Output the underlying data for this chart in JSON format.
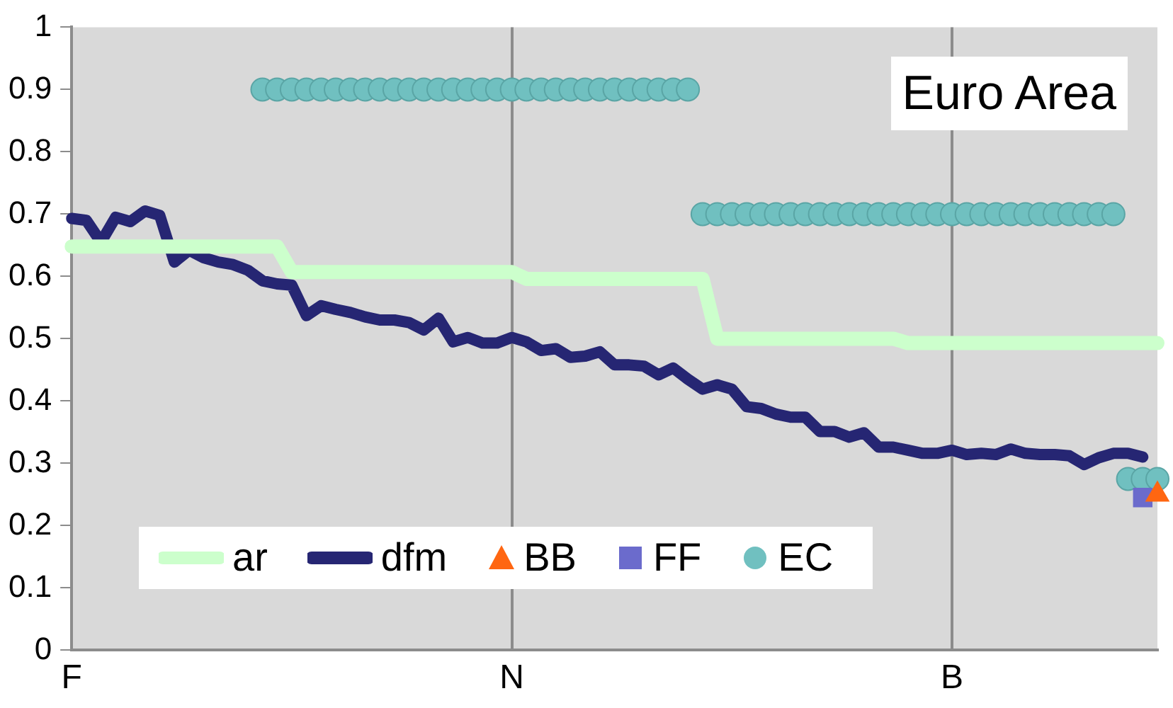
{
  "chart_data": {
    "type": "line",
    "title": "Euro Area",
    "categories": [
      "F",
      null,
      null,
      null,
      null,
      null,
      null,
      null,
      null,
      null,
      null,
      null,
      null,
      null,
      null,
      null,
      null,
      null,
      null,
      null,
      null,
      null,
      null,
      null,
      null,
      null,
      null,
      null,
      null,
      null,
      "N",
      null,
      null,
      null,
      null,
      null,
      null,
      null,
      null,
      null,
      null,
      null,
      null,
      null,
      null,
      null,
      null,
      null,
      null,
      null,
      null,
      null,
      null,
      null,
      null,
      null,
      null,
      null,
      null,
      null,
      "B",
      null,
      null,
      null,
      null,
      null,
      null,
      null,
      null,
      null,
      null,
      null,
      null,
      null,
      null
    ],
    "ylim": [
      0,
      1
    ],
    "yticks": [
      0,
      0.1,
      0.2,
      0.3,
      0.4,
      0.5,
      0.6,
      0.7,
      0.8,
      0.9,
      1
    ],
    "grid": "x",
    "legend": "bottom left",
    "series": [
      {
        "name": "ar",
        "type": "line",
        "marker": "none",
        "color": "#ccffcc",
        "values": [
          0.648,
          0.648,
          0.648,
          0.648,
          0.648,
          0.648,
          0.648,
          0.648,
          0.648,
          0.648,
          0.648,
          0.648,
          0.648,
          0.648,
          0.648,
          0.607,
          0.607,
          0.607,
          0.607,
          0.607,
          0.607,
          0.607,
          0.607,
          0.607,
          0.607,
          0.607,
          0.607,
          0.607,
          0.607,
          0.607,
          0.607,
          0.596,
          0.596,
          0.596,
          0.596,
          0.596,
          0.596,
          0.596,
          0.596,
          0.596,
          0.596,
          0.596,
          0.596,
          0.596,
          0.5,
          0.5,
          0.5,
          0.5,
          0.5,
          0.5,
          0.5,
          0.5,
          0.5,
          0.5,
          0.5,
          0.5,
          0.5,
          0.493,
          0.493,
          0.493,
          0.493,
          0.493,
          0.493,
          0.493,
          0.493,
          0.493,
          0.493,
          0.493,
          0.493,
          0.493,
          0.493,
          0.493,
          0.493,
          0.493,
          0.493
        ]
      },
      {
        "name": "dfm",
        "type": "line",
        "marker": "none",
        "color": "#262673",
        "values": [
          0.693,
          0.69,
          0.655,
          0.695,
          0.688,
          0.705,
          0.698,
          0.623,
          0.642,
          0.63,
          0.623,
          0.619,
          0.61,
          0.593,
          0.588,
          0.586,
          0.537,
          0.553,
          0.547,
          0.542,
          0.535,
          0.53,
          0.53,
          0.526,
          0.514,
          0.533,
          0.495,
          0.502,
          0.493,
          0.493,
          0.502,
          0.495,
          0.481,
          0.484,
          0.47,
          0.472,
          0.479,
          0.458,
          0.458,
          0.456,
          0.442,
          0.453,
          0.435,
          0.419,
          0.426,
          0.419,
          0.391,
          0.388,
          0.379,
          0.374,
          0.374,
          0.351,
          0.351,
          0.342,
          0.349,
          0.326,
          0.326,
          0.321,
          0.316,
          0.316,
          0.321,
          0.314,
          0.316,
          0.314,
          0.323,
          0.316,
          0.314,
          0.314,
          0.312,
          0.298,
          0.309,
          0.316,
          0.316,
          0.31,
          null
        ]
      },
      {
        "name": "BB",
        "type": "scatter",
        "marker": "triangle",
        "color": "#ff6611",
        "values": [
          null,
          null,
          null,
          null,
          null,
          null,
          null,
          null,
          null,
          null,
          null,
          null,
          null,
          null,
          null,
          null,
          null,
          null,
          null,
          null,
          null,
          null,
          null,
          null,
          null,
          null,
          null,
          null,
          null,
          null,
          null,
          null,
          null,
          null,
          null,
          null,
          null,
          null,
          null,
          null,
          null,
          null,
          null,
          null,
          null,
          null,
          null,
          null,
          null,
          null,
          null,
          null,
          null,
          null,
          null,
          null,
          null,
          null,
          null,
          null,
          null,
          null,
          null,
          null,
          null,
          null,
          null,
          null,
          null,
          null,
          null,
          null,
          null,
          null,
          0.25
        ]
      },
      {
        "name": "FF",
        "type": "scatter",
        "marker": "square",
        "color": "#6b6bcc",
        "values": [
          null,
          null,
          null,
          null,
          null,
          null,
          null,
          null,
          null,
          null,
          null,
          null,
          null,
          null,
          null,
          null,
          null,
          null,
          null,
          null,
          null,
          null,
          null,
          null,
          null,
          null,
          null,
          null,
          null,
          null,
          null,
          null,
          null,
          null,
          null,
          null,
          null,
          null,
          null,
          null,
          null,
          null,
          null,
          null,
          null,
          null,
          null,
          null,
          null,
          null,
          null,
          null,
          null,
          null,
          null,
          null,
          null,
          null,
          null,
          null,
          null,
          null,
          null,
          null,
          null,
          null,
          null,
          null,
          null,
          null,
          null,
          null,
          null,
          0.245,
          null
        ]
      },
      {
        "name": "EC",
        "type": "scatter",
        "marker": "circle",
        "color": "#70c0c0",
        "values": [
          null,
          null,
          null,
          null,
          null,
          null,
          null,
          null,
          null,
          null,
          null,
          null,
          null,
          0.9,
          0.9,
          0.9,
          0.9,
          0.9,
          0.9,
          0.9,
          0.9,
          0.9,
          0.9,
          0.9,
          0.9,
          0.9,
          0.9,
          0.9,
          0.9,
          0.9,
          0.9,
          0.9,
          0.9,
          0.9,
          0.9,
          0.9,
          0.9,
          0.9,
          0.9,
          0.9,
          0.9,
          0.9,
          0.9,
          0.7,
          0.7,
          0.7,
          0.7,
          0.7,
          0.7,
          0.7,
          0.7,
          0.7,
          0.7,
          0.7,
          0.7,
          0.7,
          0.7,
          0.7,
          0.7,
          0.7,
          0.7,
          0.7,
          0.7,
          0.7,
          0.7,
          0.7,
          0.7,
          0.7,
          0.7,
          0.7,
          0.7,
          0.7,
          0.275,
          0.275,
          0.275
        ]
      }
    ]
  }
}
